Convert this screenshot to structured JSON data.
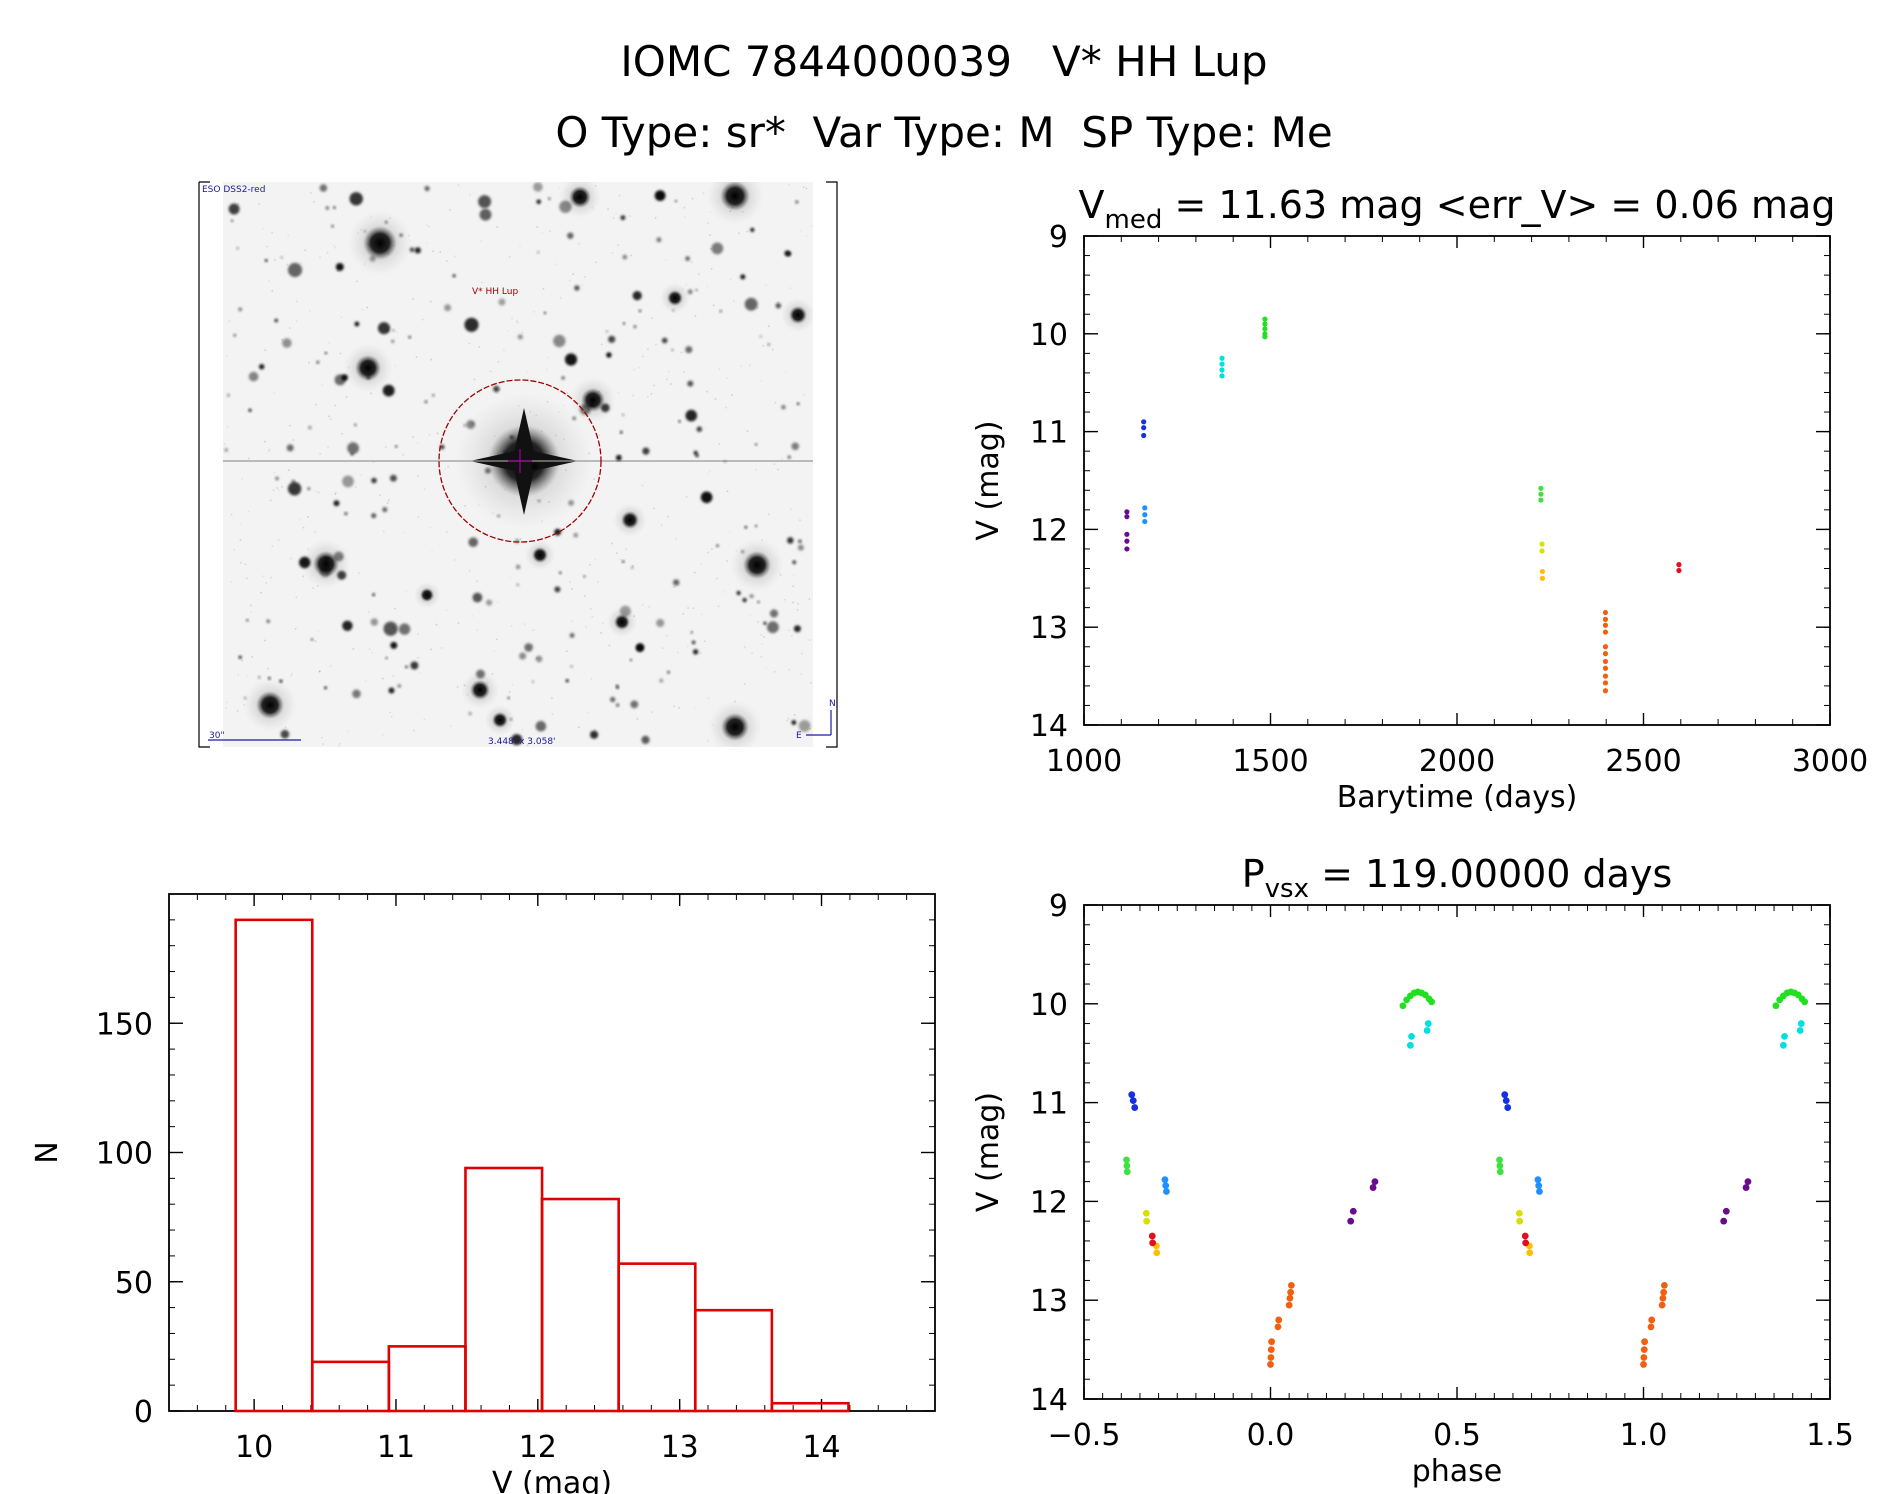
{
  "header": {
    "title": "IOMC 7844000039   V* HH Lup",
    "subtitle": "O Type: sr*  Var Type: M  SP Type: Me"
  },
  "image_panel": {
    "survey_label": "ESO DSS2-red",
    "target_label": "V* HH Lup",
    "scale_label": "30\"",
    "fov_label": "3.448' x 3.058'",
    "north_label": "N",
    "east_label": "E"
  },
  "colors": {
    "axis": "#000000",
    "histogram": "#e00000",
    "target_circle": "#a00000",
    "crosshair": "#a000a0"
  },
  "chart_data": [
    {
      "id": "light-curve",
      "type": "scatter",
      "title": "V_med = 11.63 mag <err_V> = 0.06 mag",
      "title_parts": {
        "sym": "V",
        "sub": "med",
        "rest": " = 11.63 mag <err_V> = 0.06 mag"
      },
      "xlabel": "Barytime (days)",
      "ylabel": "V (mag)",
      "xlim": [
        1000,
        3000
      ],
      "ylim": [
        14,
        9
      ],
      "y_inverted": true,
      "xticks": [
        1000,
        1500,
        2000,
        2500,
        3000
      ],
      "yticks": [
        9,
        10,
        11,
        12,
        13,
        14
      ],
      "groups": [
        {
          "color": "#6a0a8c",
          "x": 1115,
          "y": [
            11.82,
            11.87,
            12.05,
            12.12,
            12.2
          ]
        },
        {
          "color": "#1530e0",
          "x": 1160,
          "y": [
            10.9,
            10.96,
            11.04
          ]
        },
        {
          "color": "#1e90ff",
          "x": 1163,
          "y": [
            11.78,
            11.85,
            11.92
          ]
        },
        {
          "color": "#00e0e0",
          "x": 1370,
          "y": [
            10.25,
            10.31,
            10.37,
            10.43
          ]
        },
        {
          "color": "#20e020",
          "x": 1485,
          "y": [
            9.85,
            9.9,
            9.95,
            10.0,
            10.03
          ]
        },
        {
          "color": "#40e040",
          "x": 2225,
          "y": [
            11.58,
            11.64,
            11.7
          ]
        },
        {
          "color": "#d8e000",
          "x": 2228,
          "y": [
            12.15,
            12.22
          ]
        },
        {
          "color": "#ffbf00",
          "x": 2229,
          "y": [
            12.43,
            12.5
          ]
        },
        {
          "color": "#f06010",
          "x": 2398,
          "y": [
            12.85,
            12.92,
            12.98,
            13.05,
            13.2,
            13.27,
            13.35,
            13.42,
            13.5,
            13.57,
            13.65
          ]
        },
        {
          "color": "#e01020",
          "x": 2595,
          "y": [
            12.36,
            12.42
          ]
        }
      ]
    },
    {
      "id": "histogram",
      "type": "bar",
      "xlabel": "V (mag)",
      "ylabel": "N",
      "xlim": [
        9.4,
        14.8
      ],
      "ylim": [
        0,
        200
      ],
      "xticks": [
        10,
        11,
        12,
        13,
        14
      ],
      "yticks": [
        0,
        50,
        100,
        150
      ],
      "bins": [
        {
          "x0": 9.87,
          "x1": 10.41,
          "n": 190
        },
        {
          "x0": 10.41,
          "x1": 10.95,
          "n": 19
        },
        {
          "x0": 10.95,
          "x1": 11.49,
          "n": 25
        },
        {
          "x0": 11.49,
          "x1": 12.03,
          "n": 94
        },
        {
          "x0": 12.03,
          "x1": 12.57,
          "n": 82
        },
        {
          "x0": 12.57,
          "x1": 13.11,
          "n": 57
        },
        {
          "x0": 13.11,
          "x1": 13.65,
          "n": 39
        },
        {
          "x0": 13.65,
          "x1": 14.19,
          "n": 3
        }
      ]
    },
    {
      "id": "phase-curve",
      "type": "scatter",
      "title": "P_vsx = 119.00000 days",
      "title_parts": {
        "sym": "P",
        "sub": "vsx",
        "rest": " = 119.00000 days"
      },
      "xlabel": "phase",
      "ylabel": "V (mag)",
      "xlim": [
        -0.5,
        1.5
      ],
      "ylim": [
        14,
        9
      ],
      "y_inverted": true,
      "xticks": [
        -0.5,
        0.0,
        0.5,
        1.0,
        1.5
      ],
      "xtick_labels": [
        "−0.5",
        "0.0",
        "0.5",
        "1.0",
        "1.5"
      ],
      "yticks": [
        9,
        10,
        11,
        12,
        13,
        14
      ],
      "groups": [
        {
          "color": "#6a0a8c",
          "x": [
            0.215,
            0.222,
            0.275,
            0.28
          ],
          "y": [
            12.2,
            12.1,
            11.86,
            11.8
          ]
        },
        {
          "color": "#1530e0",
          "x": [
            0.628,
            0.632,
            0.636
          ],
          "y": [
            10.92,
            10.98,
            11.05
          ]
        },
        {
          "color": "#1e90ff",
          "x": [
            0.717,
            0.719,
            0.721
          ],
          "y": [
            11.78,
            11.84,
            11.9
          ]
        },
        {
          "color": "#00e0e0",
          "x": [
            0.375,
            0.378,
            0.42,
            0.423
          ],
          "y": [
            10.42,
            10.33,
            10.27,
            10.2
          ]
        },
        {
          "color": "#20e020",
          "x": [
            0.355,
            0.365,
            0.375,
            0.385,
            0.395,
            0.405,
            0.415,
            0.425,
            0.432
          ],
          "y": [
            10.02,
            9.96,
            9.92,
            9.89,
            9.88,
            9.89,
            9.91,
            9.95,
            9.98
          ]
        },
        {
          "color": "#40e040",
          "x": [
            0.614,
            0.615,
            0.616
          ],
          "y": [
            11.58,
            11.64,
            11.7
          ]
        },
        {
          "color": "#d8e000",
          "x": [
            0.667,
            0.668
          ],
          "y": [
            12.12,
            12.2
          ]
        },
        {
          "color": "#ffbf00",
          "x": [
            0.694,
            0.695
          ],
          "y": [
            12.45,
            12.52
          ]
        },
        {
          "color": "#f06010",
          "x": [
            0.0,
            0.001,
            0.002,
            0.003,
            0.02,
            0.022,
            0.05,
            0.052,
            0.054,
            0.056
          ],
          "y": [
            13.65,
            13.58,
            13.5,
            13.42,
            13.27,
            13.2,
            13.05,
            12.98,
            12.92,
            12.85
          ]
        },
        {
          "color": "#e01020",
          "x": [
            0.683,
            0.684
          ],
          "y": [
            12.35,
            12.42
          ]
        }
      ]
    }
  ]
}
